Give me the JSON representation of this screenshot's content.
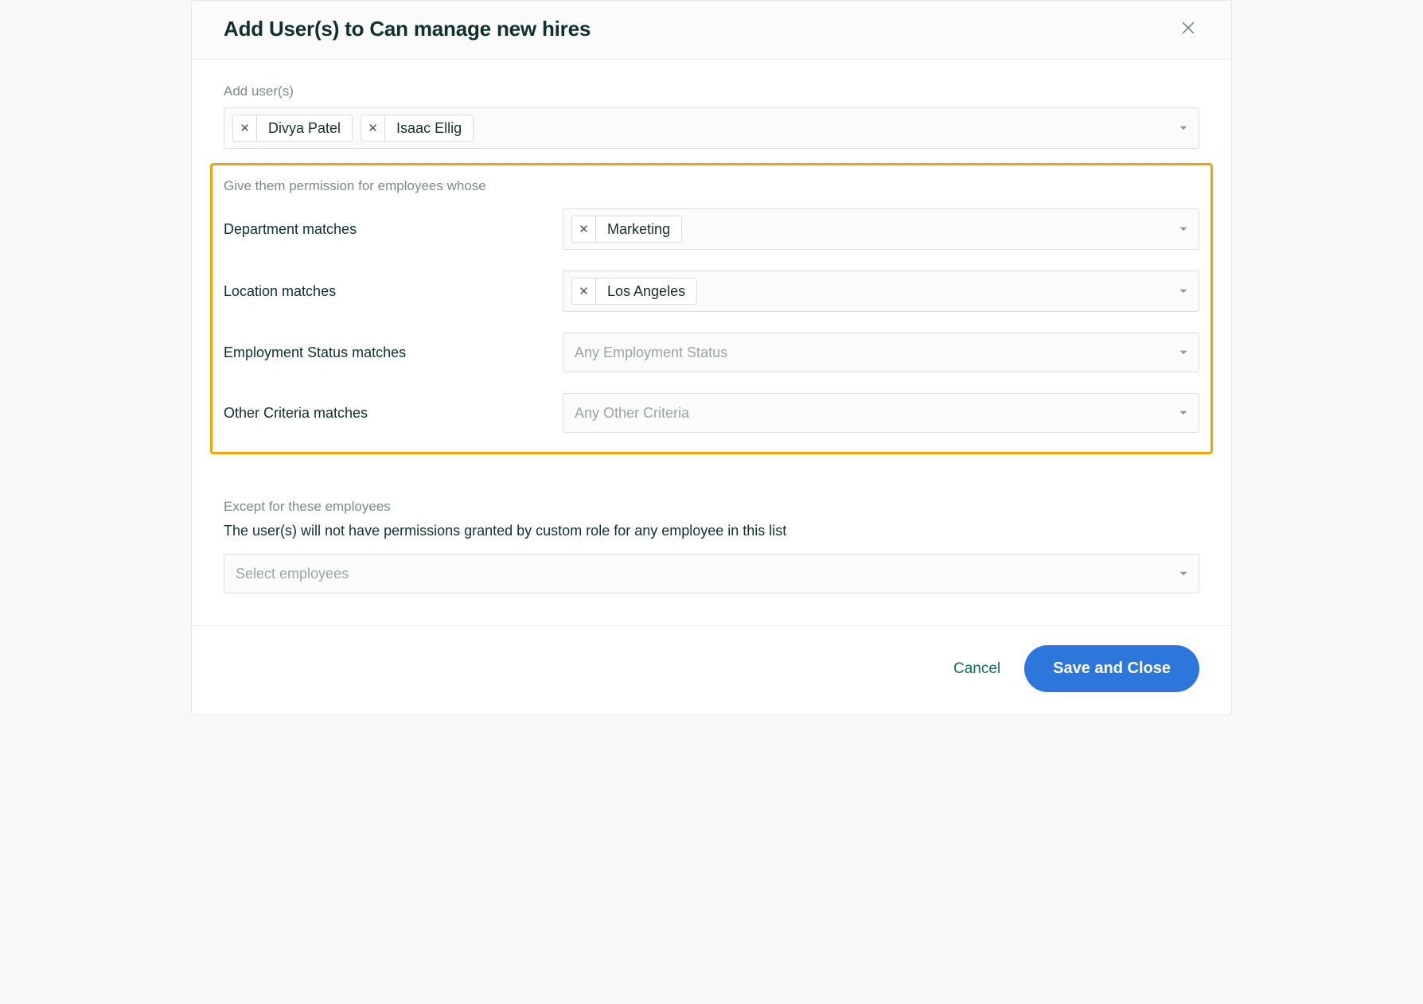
{
  "colors": {
    "highlight_border": "#f5a302",
    "primary_button": "#2d76dc",
    "link_green": "#136e4f",
    "text_dark": "#0e312b",
    "text_muted": "#7d8a88",
    "border": "#d9dddc",
    "field_bg": "#fbfbfb"
  },
  "header": {
    "title": "Add User(s) to Can manage new hires"
  },
  "add_users": {
    "label": "Add user(s)",
    "selected": [
      {
        "name": "Divya Patel"
      },
      {
        "name": "Isaac Ellig"
      }
    ]
  },
  "permissions": {
    "section_label": "Give them permission for employees whose",
    "rows": [
      {
        "key": "department",
        "label": "Department matches",
        "selected": [
          {
            "name": "Marketing"
          }
        ],
        "placeholder": ""
      },
      {
        "key": "location",
        "label": "Location matches",
        "selected": [
          {
            "name": "Los Angeles"
          }
        ],
        "placeholder": ""
      },
      {
        "key": "employment_status",
        "label": "Employment Status matches",
        "selected": [],
        "placeholder": "Any Employment Status"
      },
      {
        "key": "other_criteria",
        "label": "Other Criteria matches",
        "selected": [],
        "placeholder": "Any Other Criteria"
      }
    ]
  },
  "except": {
    "label": "Except for these employees",
    "description": "The user(s) will not have permissions granted by custom role for any employee in this list",
    "placeholder": "Select employees"
  },
  "footer": {
    "cancel": "Cancel",
    "save": "Save and Close"
  }
}
